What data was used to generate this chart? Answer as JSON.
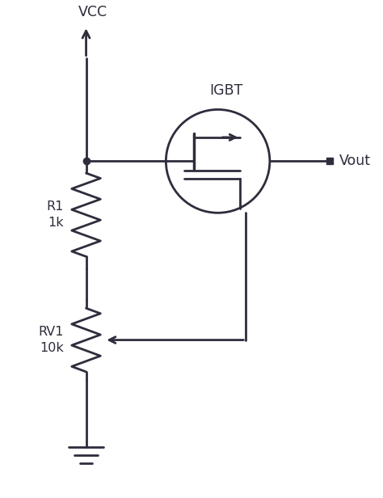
{
  "bg_color": "#ffffff",
  "line_color": "#2d2d3c",
  "line_width": 2.0,
  "fig_width": 4.74,
  "fig_height": 6.16,
  "dpi": 100,
  "vcc_label": "VCC",
  "r1_label": "R1\n1k",
  "rv1_label": "RV1\n10k",
  "vout_label": "Vout",
  "igbt_label": "IGBT",
  "font_size": 11.5
}
